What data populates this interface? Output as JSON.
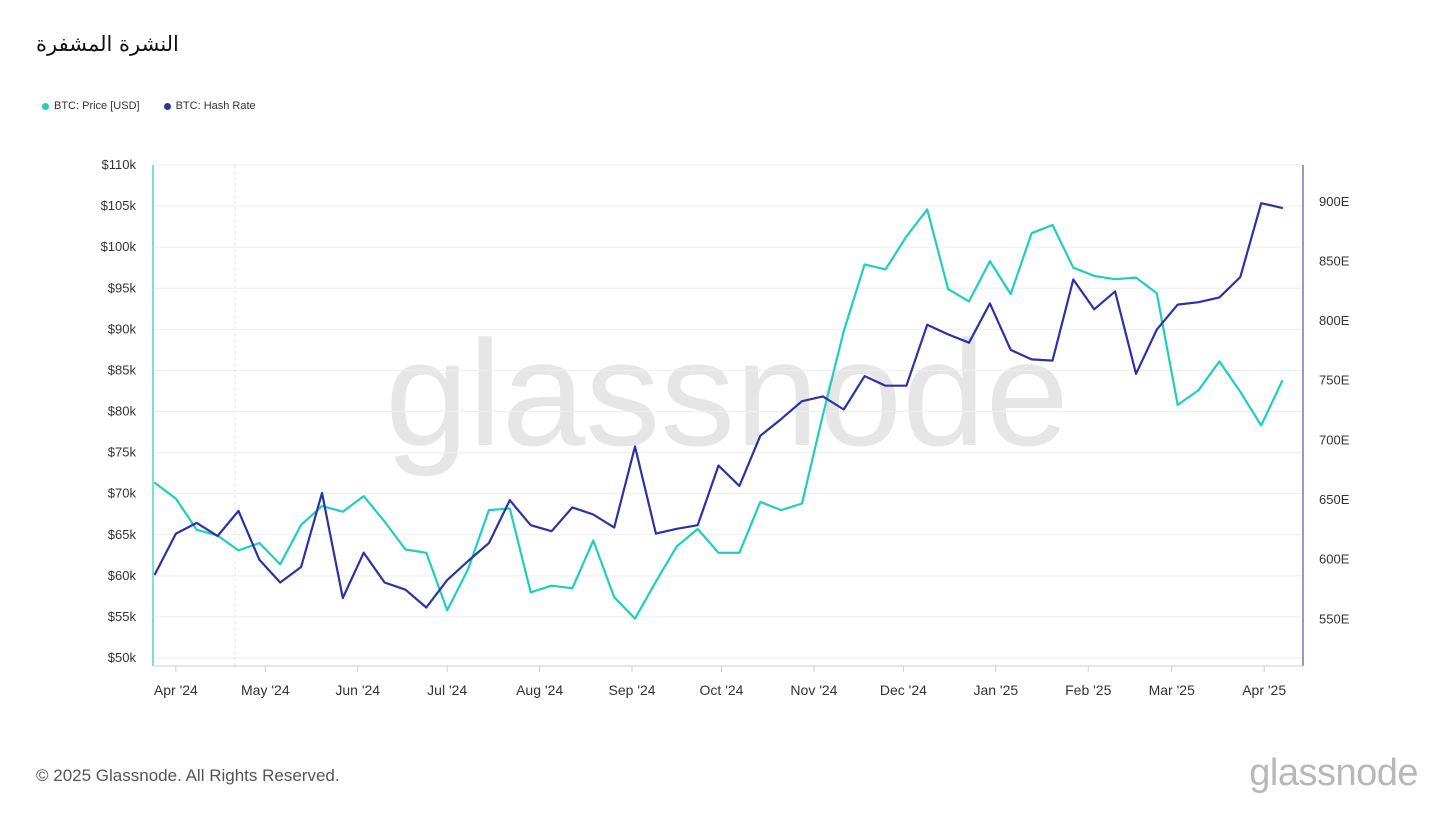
{
  "header": {
    "title": "النشرة المشفرة"
  },
  "footer": {
    "copyright": "© 2025 Glassnode. All Rights Reserved.",
    "brand": "glassnode"
  },
  "watermark": "glassnode",
  "colors": {
    "price": "#1ecfbf",
    "hash_rate": "#2a33a6",
    "grid": "#eeeeee",
    "axis": "#cfcfcf"
  },
  "chart_data": {
    "type": "line",
    "title": "",
    "xlabel": "",
    "ylabel": "",
    "x_tick_labels": [
      "Apr '24",
      "May '24",
      "Jun '24",
      "Jul '24",
      "Aug '24",
      "Sep '24",
      "Oct '24",
      "Nov '24",
      "Dec '24",
      "Jan '25",
      "Feb '25",
      "Mar '25",
      "Apr '25"
    ],
    "x_tick_dates": [
      "2024-04-01",
      "2024-05-01",
      "2024-06-01",
      "2024-07-01",
      "2024-08-01",
      "2024-09-01",
      "2024-10-01",
      "2024-11-01",
      "2024-12-01",
      "2025-01-01",
      "2025-02-01",
      "2025-03-01",
      "2025-04-01"
    ],
    "x_range": [
      "2024-03-25",
      "2025-04-10"
    ],
    "y_left": {
      "range": [
        50000,
        110000
      ],
      "ticks": [
        50000,
        55000,
        60000,
        65000,
        70000,
        75000,
        80000,
        85000,
        90000,
        95000,
        100000,
        105000,
        110000
      ],
      "tick_labels": [
        "$50k",
        "$55k",
        "$60k",
        "$65k",
        "$70k",
        "$75k",
        "$80k",
        "$85k",
        "$90k",
        "$95k",
        "$100k",
        "$105k",
        "$110k"
      ]
    },
    "y_right": {
      "range": [
        510,
        930
      ],
      "ticks": [
        550,
        600,
        650,
        700,
        750,
        800,
        850,
        900
      ],
      "tick_labels": [
        "550E",
        "600E",
        "650E",
        "700E",
        "750E",
        "800E",
        "850E",
        "900E"
      ]
    },
    "grid": true,
    "legend_position": "top-left",
    "series": [
      {
        "name": "BTC: Price [USD]",
        "axis": "left",
        "color": "#1ecfbf",
        "points": [
          [
            "2024-03-25",
            71300
          ],
          [
            "2024-04-01",
            69400
          ],
          [
            "2024-04-08",
            65600
          ],
          [
            "2024-04-15",
            64900
          ],
          [
            "2024-04-22",
            63100
          ],
          [
            "2024-04-29",
            64000
          ],
          [
            "2024-05-06",
            61400
          ],
          [
            "2024-05-13",
            66200
          ],
          [
            "2024-05-20",
            68500
          ],
          [
            "2024-05-27",
            67800
          ],
          [
            "2024-06-03",
            69700
          ],
          [
            "2024-06-10",
            66600
          ],
          [
            "2024-06-17",
            63200
          ],
          [
            "2024-06-24",
            62800
          ],
          [
            "2024-07-01",
            55800
          ],
          [
            "2024-07-08",
            60800
          ],
          [
            "2024-07-15",
            68000
          ],
          [
            "2024-07-22",
            68200
          ],
          [
            "2024-07-29",
            58000
          ],
          [
            "2024-08-05",
            58800
          ],
          [
            "2024-08-12",
            58500
          ],
          [
            "2024-08-19",
            64300
          ],
          [
            "2024-08-26",
            57400
          ],
          [
            "2024-09-02",
            54800
          ],
          [
            "2024-09-09",
            59300
          ],
          [
            "2024-09-16",
            63600
          ],
          [
            "2024-09-23",
            65700
          ],
          [
            "2024-09-30",
            62800
          ],
          [
            "2024-10-07",
            62800
          ],
          [
            "2024-10-14",
            69000
          ],
          [
            "2024-10-21",
            68000
          ],
          [
            "2024-10-28",
            68800
          ],
          [
            "2024-11-04",
            79600
          ],
          [
            "2024-11-11",
            89800
          ],
          [
            "2024-11-18",
            97900
          ],
          [
            "2024-11-25",
            97300
          ],
          [
            "2024-12-02",
            101300
          ],
          [
            "2024-12-09",
            104600
          ],
          [
            "2024-12-16",
            94900
          ],
          [
            "2024-12-23",
            93400
          ],
          [
            "2024-12-30",
            98300
          ],
          [
            "2025-01-06",
            94300
          ],
          [
            "2025-01-13",
            101700
          ],
          [
            "2025-01-20",
            102700
          ],
          [
            "2025-01-27",
            97500
          ],
          [
            "2025-02-03",
            96500
          ],
          [
            "2025-02-10",
            96100
          ],
          [
            "2025-02-17",
            96300
          ],
          [
            "2025-02-24",
            94400
          ],
          [
            "2025-03-03",
            80800
          ],
          [
            "2025-03-10",
            82600
          ],
          [
            "2025-03-17",
            86100
          ],
          [
            "2025-03-24",
            82400
          ],
          [
            "2025-03-31",
            78300
          ],
          [
            "2025-04-07",
            83700
          ]
        ]
      },
      {
        "name": "BTC: Hash Rate",
        "axis": "right",
        "color": "#2a33a6",
        "points": [
          [
            "2024-03-25",
            587
          ],
          [
            "2024-04-01",
            621
          ],
          [
            "2024-04-08",
            630
          ],
          [
            "2024-04-15",
            619
          ],
          [
            "2024-04-22",
            640
          ],
          [
            "2024-04-29",
            599
          ],
          [
            "2024-05-06",
            580
          ],
          [
            "2024-05-13",
            593
          ],
          [
            "2024-05-20",
            655
          ],
          [
            "2024-05-27",
            567
          ],
          [
            "2024-06-03",
            605
          ],
          [
            "2024-06-10",
            580
          ],
          [
            "2024-06-17",
            574
          ],
          [
            "2024-06-24",
            559
          ],
          [
            "2024-07-01",
            582
          ],
          [
            "2024-07-08",
            598
          ],
          [
            "2024-07-15",
            613
          ],
          [
            "2024-07-22",
            649
          ],
          [
            "2024-07-29",
            628
          ],
          [
            "2024-08-05",
            623
          ],
          [
            "2024-08-12",
            643
          ],
          [
            "2024-08-19",
            637
          ],
          [
            "2024-08-26",
            626
          ],
          [
            "2024-09-02",
            694
          ],
          [
            "2024-09-09",
            621
          ],
          [
            "2024-09-16",
            625
          ],
          [
            "2024-09-23",
            628
          ],
          [
            "2024-09-30",
            678
          ],
          [
            "2024-10-07",
            661
          ],
          [
            "2024-10-14",
            703
          ],
          [
            "2024-10-21",
            717
          ],
          [
            "2024-10-28",
            732
          ],
          [
            "2024-11-04",
            736
          ],
          [
            "2024-11-11",
            725
          ],
          [
            "2024-11-18",
            753
          ],
          [
            "2024-11-25",
            745
          ],
          [
            "2024-12-02",
            745
          ],
          [
            "2024-12-09",
            796
          ],
          [
            "2024-12-16",
            788
          ],
          [
            "2024-12-23",
            781
          ],
          [
            "2024-12-30",
            814
          ],
          [
            "2025-01-06",
            775
          ],
          [
            "2025-01-13",
            767
          ],
          [
            "2025-01-20",
            766
          ],
          [
            "2025-01-27",
            834
          ],
          [
            "2025-02-03",
            809
          ],
          [
            "2025-02-10",
            824
          ],
          [
            "2025-02-17",
            755
          ],
          [
            "2025-02-24",
            792
          ],
          [
            "2025-03-03",
            813
          ],
          [
            "2025-03-10",
            815
          ],
          [
            "2025-03-17",
            819
          ],
          [
            "2025-03-24",
            836
          ],
          [
            "2025-03-31",
            898
          ],
          [
            "2025-04-07",
            894
          ]
        ]
      }
    ]
  }
}
